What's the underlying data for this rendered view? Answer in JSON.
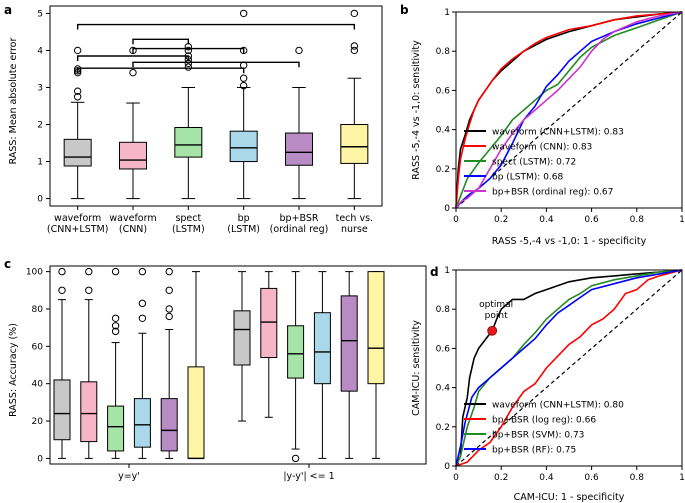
{
  "chart_data": [
    {
      "panel": "a",
      "type": "box",
      "ylabel": "RASS: Mean absolute error",
      "ylim": [
        -0.2,
        5.2
      ],
      "yticks": [
        0,
        1,
        2,
        3,
        4,
        5
      ],
      "categories": [
        "waveform\n(CNN+LSTM)",
        "waveform\n(CNN)",
        "spect\n(LSTM)",
        "bp\n(LSTM)",
        "bp+BSR\n(ordinal reg)",
        "tech vs.\nnurse"
      ],
      "colors": [
        "#c8c8c8",
        "#f7b6c8",
        "#a6e3a6",
        "#a8d8ea",
        "#b98bc4",
        "#fff5a5"
      ],
      "boxes": [
        {
          "q1": 0.88,
          "median": 1.12,
          "q3": 1.6,
          "whislo": 0.0,
          "whishi": 2.6,
          "fliers": [
            2.75,
            2.9,
            3.4,
            3.45,
            3.5,
            4.0
          ]
        },
        {
          "q1": 0.8,
          "median": 1.04,
          "q3": 1.52,
          "whislo": 0.0,
          "whishi": 2.58,
          "fliers": [
            3.4,
            4.0
          ]
        },
        {
          "q1": 1.12,
          "median": 1.45,
          "q3": 1.92,
          "whislo": 0.0,
          "whishi": 3.0,
          "fliers": [
            3.55,
            3.65,
            3.75,
            3.85,
            4.0,
            4.1
          ]
        },
        {
          "q1": 1.0,
          "median": 1.37,
          "q3": 1.82,
          "whislo": 0.0,
          "whishi": 3.0,
          "fliers": [
            3.05,
            3.25,
            3.6,
            4.0,
            5.0
          ]
        },
        {
          "q1": 0.9,
          "median": 1.25,
          "q3": 1.77,
          "whislo": 0.0,
          "whishi": 3.0,
          "fliers": [
            4.0
          ]
        },
        {
          "q1": 0.95,
          "median": 1.4,
          "q3": 2.0,
          "whislo": 0.0,
          "whishi": 3.25,
          "fliers": [
            4.0,
            4.12,
            5.0
          ]
        }
      ],
      "significance_brackets": [
        {
          "from": 1,
          "to": 6,
          "y": 4.7
        },
        {
          "from": 2,
          "to": 3,
          "y": 4.3
        },
        {
          "from": 2,
          "to": 4,
          "y": 4.05
        },
        {
          "from": 1,
          "to": 3,
          "y": 3.85
        },
        {
          "from": 2,
          "to": 5,
          "y": 3.68
        },
        {
          "from": 1,
          "to": 4,
          "y": 3.52
        }
      ]
    },
    {
      "panel": "b",
      "type": "line",
      "xlabel": "RASS -5,-4 vs -1,0: 1 - specificity",
      "ylabel": "RASS -5,-4 vs -1,0: sensitivity",
      "xlim": [
        0,
        1
      ],
      "ylim": [
        0,
        1
      ],
      "ticks": [
        0,
        0.2,
        0.4,
        0.6,
        0.8,
        1
      ],
      "tick_labels": [
        "0",
        "0.2",
        "0.4",
        "0.6",
        "0.8",
        "1"
      ],
      "series": [
        {
          "name": "waveform (CNN+LSTM): 0.83",
          "color": "#000000",
          "points": [
            [
              0,
              0
            ],
            [
              0.01,
              0.2
            ],
            [
              0.02,
              0.3
            ],
            [
              0.04,
              0.37
            ],
            [
              0.06,
              0.45
            ],
            [
              0.08,
              0.5
            ],
            [
              0.1,
              0.55
            ],
            [
              0.13,
              0.6
            ],
            [
              0.16,
              0.65
            ],
            [
              0.2,
              0.7
            ],
            [
              0.25,
              0.75
            ],
            [
              0.3,
              0.8
            ],
            [
              0.35,
              0.83
            ],
            [
              0.4,
              0.86
            ],
            [
              0.5,
              0.9
            ],
            [
              0.6,
              0.93
            ],
            [
              0.7,
              0.96
            ],
            [
              0.8,
              0.975
            ],
            [
              0.9,
              0.99
            ],
            [
              1,
              1
            ]
          ]
        },
        {
          "name": "waveform (CNN): 0.83",
          "color": "#ff0000",
          "points": [
            [
              0,
              0
            ],
            [
              0.01,
              0.15
            ],
            [
              0.02,
              0.25
            ],
            [
              0.04,
              0.35
            ],
            [
              0.06,
              0.43
            ],
            [
              0.08,
              0.5
            ],
            [
              0.1,
              0.55
            ],
            [
              0.13,
              0.6
            ],
            [
              0.16,
              0.65
            ],
            [
              0.2,
              0.71
            ],
            [
              0.25,
              0.76
            ],
            [
              0.3,
              0.8
            ],
            [
              0.35,
              0.84
            ],
            [
              0.4,
              0.87
            ],
            [
              0.5,
              0.91
            ],
            [
              0.6,
              0.93
            ],
            [
              0.7,
              0.96
            ],
            [
              0.8,
              0.98
            ],
            [
              0.9,
              0.99
            ],
            [
              1,
              1
            ]
          ]
        },
        {
          "name": "spect (LSTM): 0.72",
          "color": "#228b22",
          "points": [
            [
              0,
              0
            ],
            [
              0.02,
              0.06
            ],
            [
              0.05,
              0.15
            ],
            [
              0.1,
              0.23
            ],
            [
              0.15,
              0.3
            ],
            [
              0.2,
              0.37
            ],
            [
              0.25,
              0.45
            ],
            [
              0.3,
              0.5
            ],
            [
              0.35,
              0.55
            ],
            [
              0.4,
              0.6
            ],
            [
              0.45,
              0.63
            ],
            [
              0.5,
              0.7
            ],
            [
              0.55,
              0.77
            ],
            [
              0.6,
              0.82
            ],
            [
              0.65,
              0.85
            ],
            [
              0.7,
              0.88
            ],
            [
              0.8,
              0.92
            ],
            [
              0.9,
              0.96
            ],
            [
              1,
              1
            ]
          ]
        },
        {
          "name": "bp (LSTM): 0.68",
          "color": "#0000ff",
          "points": [
            [
              0,
              0
            ],
            [
              0.03,
              0.04
            ],
            [
              0.06,
              0.07
            ],
            [
              0.1,
              0.1
            ],
            [
              0.15,
              0.15
            ],
            [
              0.2,
              0.22
            ],
            [
              0.25,
              0.33
            ],
            [
              0.3,
              0.45
            ],
            [
              0.35,
              0.52
            ],
            [
              0.4,
              0.62
            ],
            [
              0.45,
              0.68
            ],
            [
              0.5,
              0.75
            ],
            [
              0.55,
              0.8
            ],
            [
              0.6,
              0.85
            ],
            [
              0.7,
              0.9
            ],
            [
              0.8,
              0.94
            ],
            [
              0.9,
              0.97
            ],
            [
              1,
              1
            ]
          ]
        },
        {
          "name": "bp+BSR (ordinal reg): 0.67",
          "color": "#cc33cc",
          "points": [
            [
              0,
              0
            ],
            [
              0.02,
              0.03
            ],
            [
              0.05,
              0.05
            ],
            [
              0.1,
              0.1
            ],
            [
              0.15,
              0.2
            ],
            [
              0.2,
              0.3
            ],
            [
              0.25,
              0.38
            ],
            [
              0.3,
              0.45
            ],
            [
              0.35,
              0.5
            ],
            [
              0.4,
              0.55
            ],
            [
              0.45,
              0.6
            ],
            [
              0.5,
              0.66
            ],
            [
              0.55,
              0.72
            ],
            [
              0.6,
              0.8
            ],
            [
              0.65,
              0.86
            ],
            [
              0.7,
              0.9
            ],
            [
              0.8,
              0.95
            ],
            [
              0.9,
              0.98
            ],
            [
              1,
              1
            ]
          ]
        }
      ]
    },
    {
      "panel": "c",
      "type": "box",
      "ylabel": "RASS: Accuracy (%)",
      "ylim": [
        -3,
        103
      ],
      "yticks": [
        0,
        20,
        40,
        60,
        80,
        100
      ],
      "group_labels": [
        "y=y'",
        "|y-y'| <= 1"
      ],
      "colors": [
        "#c8c8c8",
        "#f7b6c8",
        "#a6e3a6",
        "#a8d8ea",
        "#b98bc4",
        "#fff5a5"
      ],
      "groups": [
        [
          {
            "q1": 10,
            "median": 24,
            "q3": 42,
            "whislo": 0,
            "whishi": 85,
            "fliers": [
              90,
              100
            ]
          },
          {
            "q1": 9,
            "median": 24,
            "q3": 41,
            "whislo": 0,
            "whishi": 85,
            "fliers": [
              90,
              100
            ]
          },
          {
            "q1": 4,
            "median": 17,
            "q3": 28,
            "whislo": 0,
            "whishi": 62,
            "fliers": [
              68,
              71,
              75,
              100
            ]
          },
          {
            "q1": 6,
            "median": 18,
            "q3": 32,
            "whislo": 0,
            "whishi": 67,
            "fliers": [
              75,
              83,
              100
            ]
          },
          {
            "q1": 4,
            "median": 15,
            "q3": 32,
            "whislo": 0,
            "whishi": 69,
            "fliers": [
              76,
              80,
              90,
              100
            ]
          },
          {
            "q1": 0,
            "median": 0,
            "q3": 49,
            "whislo": 0,
            "whishi": 100,
            "fliers": []
          }
        ],
        [
          {
            "q1": 50,
            "median": 69,
            "q3": 79,
            "whislo": 20,
            "whishi": 100,
            "fliers": []
          },
          {
            "q1": 54,
            "median": 73,
            "q3": 91,
            "whislo": 22,
            "whishi": 100,
            "fliers": []
          },
          {
            "q1": 43,
            "median": 56,
            "q3": 71,
            "whislo": 5,
            "whishi": 100,
            "fliers": [
              0
            ]
          },
          {
            "q1": 40,
            "median": 57,
            "q3": 78,
            "whislo": 0,
            "whishi": 100,
            "fliers": []
          },
          {
            "q1": 36,
            "median": 63,
            "q3": 87,
            "whislo": 0,
            "whishi": 100,
            "fliers": []
          },
          {
            "q1": 40,
            "median": 59,
            "q3": 100,
            "whislo": 0,
            "whishi": 100,
            "fliers": []
          }
        ]
      ]
    },
    {
      "panel": "d",
      "type": "line",
      "xlabel": "CAM-ICU: 1 - specificity",
      "ylabel": "CAM-ICU: sensitivity",
      "xlim": [
        0,
        1
      ],
      "ylim": [
        0,
        1
      ],
      "ticks": [
        0,
        0.2,
        0.4,
        0.6,
        0.8,
        1
      ],
      "tick_labels": [
        "0",
        "0.2",
        "0.4",
        "0.6",
        "0.8",
        "1"
      ],
      "annotation": {
        "text": "optimal\npoint",
        "x": 0.16,
        "y": 0.69
      },
      "series": [
        {
          "name": "waveform (CNN+LSTM): 0.80",
          "color": "#000000",
          "points": [
            [
              0,
              0
            ],
            [
              0.02,
              0.05
            ],
            [
              0.03,
              0.25
            ],
            [
              0.05,
              0.35
            ],
            [
              0.06,
              0.45
            ],
            [
              0.08,
              0.55
            ],
            [
              0.1,
              0.6
            ],
            [
              0.12,
              0.63
            ],
            [
              0.14,
              0.66
            ],
            [
              0.16,
              0.69
            ],
            [
              0.18,
              0.75
            ],
            [
              0.2,
              0.8
            ],
            [
              0.25,
              0.85
            ],
            [
              0.3,
              0.85
            ],
            [
              0.35,
              0.88
            ],
            [
              0.4,
              0.9
            ],
            [
              0.5,
              0.94
            ],
            [
              0.6,
              0.96
            ],
            [
              0.7,
              0.97
            ],
            [
              0.8,
              0.98
            ],
            [
              0.9,
              0.99
            ],
            [
              1,
              1
            ]
          ]
        },
        {
          "name": "bp+BSR (log reg): 0.66",
          "color": "#ff0000",
          "points": [
            [
              0,
              0
            ],
            [
              0.05,
              0.02
            ],
            [
              0.1,
              0.08
            ],
            [
              0.15,
              0.12
            ],
            [
              0.2,
              0.2
            ],
            [
              0.25,
              0.3
            ],
            [
              0.3,
              0.38
            ],
            [
              0.35,
              0.42
            ],
            [
              0.4,
              0.5
            ],
            [
              0.45,
              0.56
            ],
            [
              0.5,
              0.62
            ],
            [
              0.55,
              0.66
            ],
            [
              0.6,
              0.72
            ],
            [
              0.65,
              0.75
            ],
            [
              0.7,
              0.8
            ],
            [
              0.75,
              0.88
            ],
            [
              0.8,
              0.9
            ],
            [
              0.85,
              0.95
            ],
            [
              0.9,
              0.97
            ],
            [
              1,
              1
            ]
          ]
        },
        {
          "name": "bp+BSR (SVM): 0.73",
          "color": "#228b22",
          "points": [
            [
              0,
              0
            ],
            [
              0.02,
              0.05
            ],
            [
              0.05,
              0.2
            ],
            [
              0.08,
              0.3
            ],
            [
              0.1,
              0.38
            ],
            [
              0.15,
              0.45
            ],
            [
              0.2,
              0.5
            ],
            [
              0.25,
              0.55
            ],
            [
              0.3,
              0.62
            ],
            [
              0.35,
              0.68
            ],
            [
              0.4,
              0.75
            ],
            [
              0.45,
              0.8
            ],
            [
              0.5,
              0.85
            ],
            [
              0.55,
              0.88
            ],
            [
              0.6,
              0.92
            ],
            [
              0.7,
              0.95
            ],
            [
              0.8,
              0.97
            ],
            [
              0.9,
              0.99
            ],
            [
              1,
              1
            ]
          ]
        },
        {
          "name": "bp+BSR (RF): 0.75",
          "color": "#0000ff",
          "points": [
            [
              0,
              0
            ],
            [
              0.02,
              0.1
            ],
            [
              0.04,
              0.22
            ],
            [
              0.07,
              0.35
            ],
            [
              0.1,
              0.4
            ],
            [
              0.15,
              0.45
            ],
            [
              0.2,
              0.5
            ],
            [
              0.25,
              0.55
            ],
            [
              0.3,
              0.6
            ],
            [
              0.35,
              0.65
            ],
            [
              0.4,
              0.72
            ],
            [
              0.45,
              0.78
            ],
            [
              0.5,
              0.82
            ],
            [
              0.55,
              0.86
            ],
            [
              0.6,
              0.9
            ],
            [
              0.7,
              0.93
            ],
            [
              0.8,
              0.96
            ],
            [
              0.9,
              0.98
            ],
            [
              1,
              1
            ]
          ]
        }
      ]
    }
  ]
}
